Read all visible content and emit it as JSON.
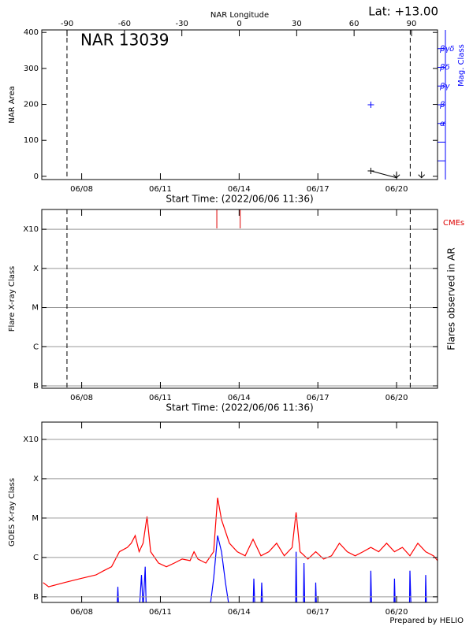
{
  "chart_data": [
    {
      "type": "scatter",
      "title": "NAR 13039",
      "annotation": "Lat: +13.00",
      "x_label": "Start Time: (2022/06/06 11:36)",
      "y_label": "NAR Area",
      "y2_label": "Mag. Class",
      "top_axis_label": "NAR Longitude",
      "xlim": [
        6.48,
        21.56
      ],
      "xticks": [
        {
          "value": 8,
          "label": "06/08"
        },
        {
          "value": 11,
          "label": "06/11"
        },
        {
          "value": 14,
          "label": "06/14"
        },
        {
          "value": 17,
          "label": "06/17"
        },
        {
          "value": 20,
          "label": "06/20"
        }
      ],
      "top_xlim": [
        -103.2,
        103.6
      ],
      "top_xticks": [
        -90,
        -60,
        -30,
        0,
        30,
        60,
        90
      ],
      "ylim": [
        -9,
        407
      ],
      "yticks": [
        0,
        100,
        200,
        300,
        400
      ],
      "y2lim": [
        -2,
        6
      ],
      "y2ticks": [
        {
          "value": 1,
          "label": "α"
        },
        {
          "value": 2,
          "label": "β"
        },
        {
          "value": 3,
          "label": "βγ"
        },
        {
          "value": 4,
          "label": "βδ"
        },
        {
          "value": 5,
          "label": "βγδ"
        }
      ],
      "y2_minor_ticks": [
        -1,
        0
      ],
      "y2_color": "#0000ff",
      "limb_lines": [
        7.44,
        20.52
      ],
      "series": [
        {
          "color": "#000000",
          "x": [
            19.02,
            20.0
          ],
          "values": [
            15,
            -4
          ],
          "markers": [
            "plus",
            "arrow"
          ],
          "line": true
        },
        {
          "color": "#000000",
          "x": [
            20.95
          ],
          "values": [
            -4
          ],
          "markers": [
            "arrow"
          ],
          "line": false
        },
        {
          "color": "#0000ff",
          "axis": "y2",
          "x": [
            19.02
          ],
          "values": [
            2
          ],
          "markers": [
            "plus"
          ],
          "line": false
        }
      ]
    },
    {
      "type": "events",
      "x_label": "Start Time: (2022/06/06 11:36)",
      "y_label": "Flare X-ray Class",
      "y2_label": "Flares observed in AR",
      "xlim": [
        6.48,
        21.56
      ],
      "xticks": [
        {
          "value": 8,
          "label": "06/08"
        },
        {
          "value": 11,
          "label": "06/11"
        },
        {
          "value": 14,
          "label": "06/14"
        },
        {
          "value": 17,
          "label": "06/17"
        },
        {
          "value": 20,
          "label": "06/20"
        }
      ],
      "log": true,
      "grid": true,
      "ylim": [
        8.7e-08,
        0.0032
      ],
      "yticks": [
        {
          "value": 1e-07,
          "label": "B"
        },
        {
          "value": 1e-06,
          "label": "C"
        },
        {
          "value": 1e-05,
          "label": "M"
        },
        {
          "value": 0.0001,
          "label": "X"
        },
        {
          "value": 0.001,
          "label": "X10"
        }
      ],
      "limb_lines": [
        7.44,
        20.52
      ],
      "events": {
        "name": "CMEs",
        "color": "#dd0000",
        "x": [
          13.15,
          14.04
        ]
      }
    },
    {
      "type": "line",
      "y_label": "GOES X-ray Class",
      "xlim": [
        6.48,
        21.56
      ],
      "xticks": [
        {
          "value": 8,
          "label": "06/08"
        },
        {
          "value": 11,
          "label": "06/11"
        },
        {
          "value": 14,
          "label": "06/14"
        },
        {
          "value": 17,
          "label": "06/17"
        },
        {
          "value": 20,
          "label": "06/20"
        }
      ],
      "log": true,
      "grid": true,
      "ylim": [
        7.2e-08,
        0.00275
      ],
      "yticks": [
        {
          "value": 1e-07,
          "label": "B"
        },
        {
          "value": 1e-06,
          "label": "C"
        },
        {
          "value": 1e-05,
          "label": "M"
        },
        {
          "value": 0.0001,
          "label": "X"
        },
        {
          "value": 0.001,
          "label": "X10"
        }
      ],
      "series": [
        {
          "color": "#ff0000",
          "line": true,
          "x": [
            6.53,
            6.74,
            7.34,
            7.94,
            8.54,
            8.84,
            9.14,
            9.44,
            9.74,
            9.89,
            10.04,
            10.19,
            10.34,
            10.49,
            10.63,
            10.93,
            11.23,
            11.53,
            11.83,
            12.13,
            12.28,
            12.43,
            12.73,
            13.03,
            13.18,
            13.33,
            13.63,
            13.93,
            14.23,
            14.53,
            14.83,
            15.13,
            15.43,
            15.72,
            16.02,
            16.17,
            16.32,
            16.62,
            16.92,
            17.22,
            17.52,
            17.82,
            18.12,
            18.42,
            18.72,
            19.02,
            19.32,
            19.62,
            19.92,
            20.22,
            20.51,
            20.81,
            21.11,
            21.41,
            21.56
          ],
          "values": [
            2.3e-07,
            1.8e-07,
            2.3e-07,
            2.9e-07,
            3.6e-07,
            4.6e-07,
            5.8e-07,
            1.4e-06,
            1.8e-06,
            2.3e-06,
            3.6e-06,
            1.4e-06,
            2.3e-06,
            1.1e-05,
            1.4e-06,
            7.2e-07,
            5.8e-07,
            7.2e-07,
            9.1e-07,
            8.3e-07,
            1.4e-06,
            9.1e-07,
            7.2e-07,
            1.4e-06,
            3.3e-05,
            9.1e-06,
            2.3e-06,
            1.4e-06,
            1.1e-06,
            2.9e-06,
            1.1e-06,
            1.4e-06,
            2.3e-06,
            1.1e-06,
            1.8e-06,
            1.4e-05,
            1.4e-06,
            9.1e-07,
            1.4e-06,
            9.1e-07,
            1.1e-06,
            2.3e-06,
            1.4e-06,
            1.1e-06,
            1.4e-06,
            1.8e-06,
            1.4e-06,
            2.3e-06,
            1.4e-06,
            1.8e-06,
            1.1e-06,
            2.3e-06,
            1.4e-06,
            1.1e-06,
            8.3e-07
          ]
        },
        {
          "color": "#0000ff",
          "line": true,
          "x": [
            6.53,
            7.94,
            9.35,
            9.38,
            9.41,
            10.2,
            10.28,
            10.34,
            10.42,
            10.46,
            12.9,
            13.03,
            13.18,
            13.33,
            13.48,
            13.63,
            14.53,
            14.56,
            14.6,
            14.83,
            14.86,
            14.9,
            16.15,
            16.17,
            16.2,
            16.45,
            16.47,
            16.5,
            16.9,
            16.92,
            16.95,
            19.0,
            19.02,
            19.05,
            19.9,
            19.92,
            19.95,
            20.49,
            20.51,
            20.55,
            21.09,
            21.11,
            21.14,
            21.56
          ],
          "values": [
            5e-08,
            6e-08,
            5e-08,
            1.8e-07,
            5e-08,
            5e-08,
            3.6e-07,
            5e-08,
            5.8e-07,
            5e-08,
            6e-08,
            2.9e-07,
            3.6e-06,
            1.4e-06,
            2.3e-07,
            5e-08,
            5e-08,
            2.9e-07,
            5e-08,
            5e-08,
            2.3e-07,
            5e-08,
            5e-08,
            1.4e-06,
            5e-08,
            5e-08,
            7.2e-07,
            5e-08,
            5e-08,
            2.3e-07,
            5e-08,
            5e-08,
            4.6e-07,
            5e-08,
            5e-08,
            2.9e-07,
            5e-08,
            5e-08,
            4.6e-07,
            5e-08,
            5e-08,
            3.6e-07,
            5e-08,
            5e-08
          ]
        }
      ]
    }
  ],
  "footer": "Prepared by HELIO"
}
